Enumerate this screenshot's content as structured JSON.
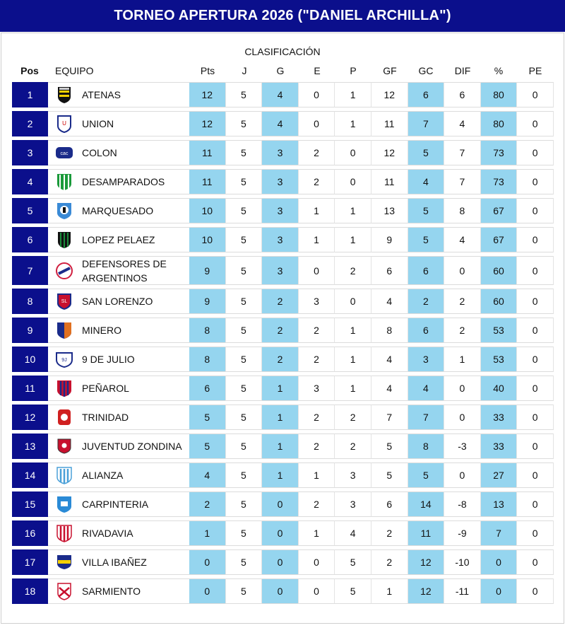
{
  "title": "TORNEO APERTURA 2026 (\"DANIEL ARCHILLA\")",
  "subtitle": "CLASIFICACIÓN",
  "columns": [
    "Pos",
    "EQUIPO",
    "Pts",
    "J",
    "G",
    "E",
    "P",
    "GF",
    "GC",
    "DIF",
    "%",
    "PE"
  ],
  "colors": {
    "banner": "#0b0f8c",
    "highlight": "#95d5ef"
  },
  "rows": [
    {
      "pos": "1",
      "team": "ATENAS",
      "badge": "atenas-badge-icon",
      "pts": "12",
      "j": "5",
      "g": "4",
      "e": "0",
      "p": "1",
      "gf": "12",
      "gc": "6",
      "dif": "6",
      "pct": "80",
      "pe": "0"
    },
    {
      "pos": "2",
      "team": "UNION",
      "badge": "union-badge-icon",
      "pts": "12",
      "j": "5",
      "g": "4",
      "e": "0",
      "p": "1",
      "gf": "11",
      "gc": "7",
      "dif": "4",
      "pct": "80",
      "pe": "0"
    },
    {
      "pos": "3",
      "team": "COLON",
      "badge": "colon-badge-icon",
      "pts": "11",
      "j": "5",
      "g": "3",
      "e": "2",
      "p": "0",
      "gf": "12",
      "gc": "5",
      "dif": "7",
      "pct": "73",
      "pe": "0"
    },
    {
      "pos": "4",
      "team": "DESAMPARADOS",
      "badge": "desamparados-badge-icon",
      "pts": "11",
      "j": "5",
      "g": "3",
      "e": "2",
      "p": "0",
      "gf": "11",
      "gc": "4",
      "dif": "7",
      "pct": "73",
      "pe": "0"
    },
    {
      "pos": "5",
      "team": "MARQUESADO",
      "badge": "marquesado-badge-icon",
      "pts": "10",
      "j": "5",
      "g": "3",
      "e": "1",
      "p": "1",
      "gf": "13",
      "gc": "5",
      "dif": "8",
      "pct": "67",
      "pe": "0"
    },
    {
      "pos": "6",
      "team": "LOPEZ PELAEZ",
      "badge": "lopez-pelaez-badge-icon",
      "pts": "10",
      "j": "5",
      "g": "3",
      "e": "1",
      "p": "1",
      "gf": "9",
      "gc": "5",
      "dif": "4",
      "pct": "67",
      "pe": "0"
    },
    {
      "pos": "7",
      "team": "DEFENSORES DE ARGENTINOS",
      "team_line1": "DEFENSORES DE",
      "team_line2": "ARGENTINOS",
      "badge": "defensores-badge-icon",
      "pts": "9",
      "j": "5",
      "g": "3",
      "e": "0",
      "p": "2",
      "gf": "6",
      "gc": "6",
      "dif": "0",
      "pct": "60",
      "pe": "0"
    },
    {
      "pos": "8",
      "team": "SAN LORENZO",
      "badge": "san-lorenzo-badge-icon",
      "pts": "9",
      "j": "5",
      "g": "2",
      "e": "3",
      "p": "0",
      "gf": "4",
      "gc": "2",
      "dif": "2",
      "pct": "60",
      "pe": "0"
    },
    {
      "pos": "9",
      "team": "MINERO",
      "badge": "minero-badge-icon",
      "pts": "8",
      "j": "5",
      "g": "2",
      "e": "2",
      "p": "1",
      "gf": "8",
      "gc": "6",
      "dif": "2",
      "pct": "53",
      "pe": "0"
    },
    {
      "pos": "10",
      "team": "9 DE JULIO",
      "badge": "nueve-de-julio-badge-icon",
      "pts": "8",
      "j": "5",
      "g": "2",
      "e": "2",
      "p": "1",
      "gf": "4",
      "gc": "3",
      "dif": "1",
      "pct": "53",
      "pe": "0"
    },
    {
      "pos": "11",
      "team": "PEÑAROL",
      "badge": "penarol-badge-icon",
      "pts": "6",
      "j": "5",
      "g": "1",
      "e": "3",
      "p": "1",
      "gf": "4",
      "gc": "4",
      "dif": "0",
      "pct": "40",
      "pe": "0"
    },
    {
      "pos": "12",
      "team": "TRINIDAD",
      "badge": "trinidad-badge-icon",
      "pts": "5",
      "j": "5",
      "g": "1",
      "e": "2",
      "p": "2",
      "gf": "7",
      "gc": "7",
      "dif": "0",
      "pct": "33",
      "pe": "0"
    },
    {
      "pos": "13",
      "team": "JUVENTUD ZONDINA",
      "badge": "juventud-zondina-badge-icon",
      "pts": "5",
      "j": "5",
      "g": "1",
      "e": "2",
      "p": "2",
      "gf": "5",
      "gc": "8",
      "dif": "-3",
      "pct": "33",
      "pe": "0"
    },
    {
      "pos": "14",
      "team": "ALIANZA",
      "badge": "alianza-badge-icon",
      "pts": "4",
      "j": "5",
      "g": "1",
      "e": "1",
      "p": "3",
      "gf": "5",
      "gc": "5",
      "dif": "0",
      "pct": "27",
      "pe": "0"
    },
    {
      "pos": "15",
      "team": "CARPINTERIA",
      "badge": "carpinteria-badge-icon",
      "pts": "2",
      "j": "5",
      "g": "0",
      "e": "2",
      "p": "3",
      "gf": "6",
      "gc": "14",
      "dif": "-8",
      "pct": "13",
      "pe": "0"
    },
    {
      "pos": "16",
      "team": "RIVADAVIA",
      "badge": "rivadavia-badge-icon",
      "pts": "1",
      "j": "5",
      "g": "0",
      "e": "1",
      "p": "4",
      "gf": "2",
      "gc": "11",
      "dif": "-9",
      "pct": "7",
      "pe": "0"
    },
    {
      "pos": "17",
      "team": "VILLA IBAÑEZ",
      "badge": "villa-ibanez-badge-icon",
      "pts": "0",
      "j": "5",
      "g": "0",
      "e": "0",
      "p": "5",
      "gf": "2",
      "gc": "12",
      "dif": "-10",
      "pct": "0",
      "pe": "0"
    },
    {
      "pos": "18",
      "team": "SARMIENTO",
      "badge": "sarmiento-badge-icon",
      "pts": "0",
      "j": "5",
      "g": "0",
      "e": "0",
      "p": "5",
      "gf": "1",
      "gc": "12",
      "dif": "-11",
      "pct": "0",
      "pe": "0"
    }
  ]
}
